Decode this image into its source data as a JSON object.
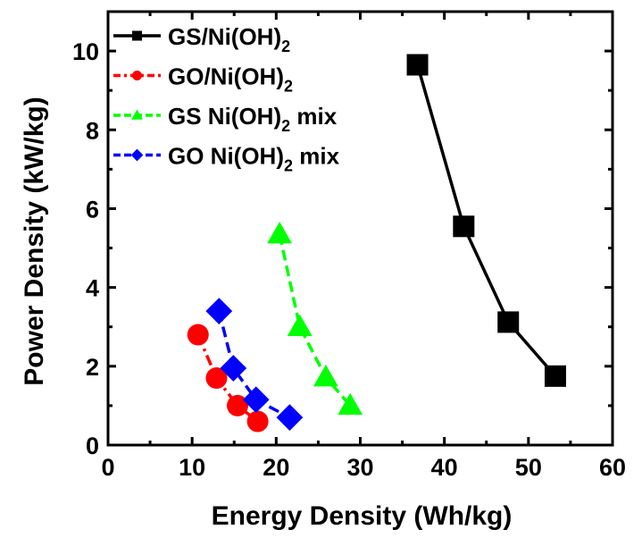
{
  "chart_data": {
    "type": "line",
    "title": "",
    "xlabel": "Energy Density (Wh/kg)",
    "ylabel": "Power Density (kW/kg)",
    "xlim": [
      0,
      60
    ],
    "ylim": [
      0,
      11
    ],
    "xticks": [
      0,
      10,
      20,
      30,
      40,
      50,
      60
    ],
    "yticks": [
      0,
      2,
      4,
      6,
      8,
      10
    ],
    "grid": false,
    "legend_position": "top-left",
    "series": [
      {
        "name": "GS/Ni(OH)",
        "name_subscript": "2",
        "name_suffix": "",
        "color": "#000000",
        "marker": "square",
        "line": "solid",
        "x": [
          36.8,
          42.3,
          47.6,
          53.2
        ],
        "y": [
          9.65,
          5.55,
          3.12,
          1.75
        ]
      },
      {
        "name": "GO/Ni(OH)",
        "name_subscript": "2",
        "name_suffix": "",
        "color": "#ff0000",
        "marker": "circle",
        "line": "dashdot",
        "x": [
          10.7,
          12.9,
          15.4,
          17.8
        ],
        "y": [
          2.8,
          1.7,
          1.0,
          0.6
        ]
      },
      {
        "name": "GS Ni(OH)",
        "name_subscript": "2",
        "name_suffix": " mix",
        "color": "#00ff00",
        "marker": "triangle",
        "line": "dashed",
        "x": [
          20.4,
          22.8,
          25.9,
          28.8
        ],
        "y": [
          5.35,
          3.0,
          1.72,
          1.0
        ]
      },
      {
        "name": "GO Ni(OH)",
        "name_subscript": "2",
        "name_suffix": " mix",
        "color": "#0000ff",
        "marker": "diamond",
        "line": "dashed",
        "x": [
          13.2,
          14.9,
          17.6,
          21.6
        ],
        "y": [
          3.4,
          1.95,
          1.15,
          0.7
        ]
      }
    ]
  }
}
